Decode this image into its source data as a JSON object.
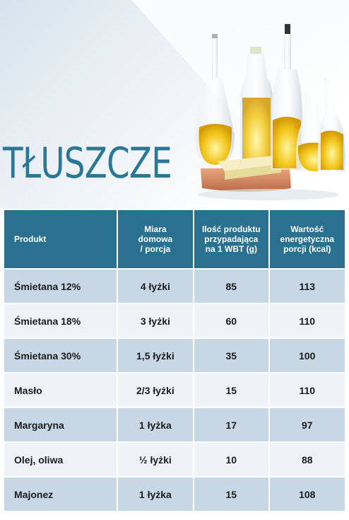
{
  "title": "TŁUSZCZE",
  "table": {
    "headers": [
      "Produkt",
      "Miara\ndomowa\n/ porcja",
      "Ilość produktu\nprzypadająca\nna 1 WBT (g)",
      "Wartość\nenergetyczna\nporcji (kcal)"
    ],
    "rows": [
      [
        "Śmietana 12%",
        "4 łyżki",
        "85",
        "113"
      ],
      [
        "Śmietana 18%",
        "3 łyżki",
        "60",
        "110"
      ],
      [
        "Śmietana 30%",
        "1,5 łyżki",
        "35",
        "100"
      ],
      [
        "Masło",
        "2/3 łyżki",
        "15",
        "110"
      ],
      [
        "Margaryna",
        "1 łyżka",
        "17",
        "97"
      ],
      [
        "Olej, oliwa",
        "½ łyżki",
        "10",
        "88"
      ],
      [
        "Majonez",
        "1 łyżka",
        "15",
        "108"
      ]
    ]
  },
  "colors": {
    "header_bg": "#2a7190",
    "title": "#2a7896",
    "row_dark": "#c8d7e5",
    "row_light": "#eef3f8"
  }
}
